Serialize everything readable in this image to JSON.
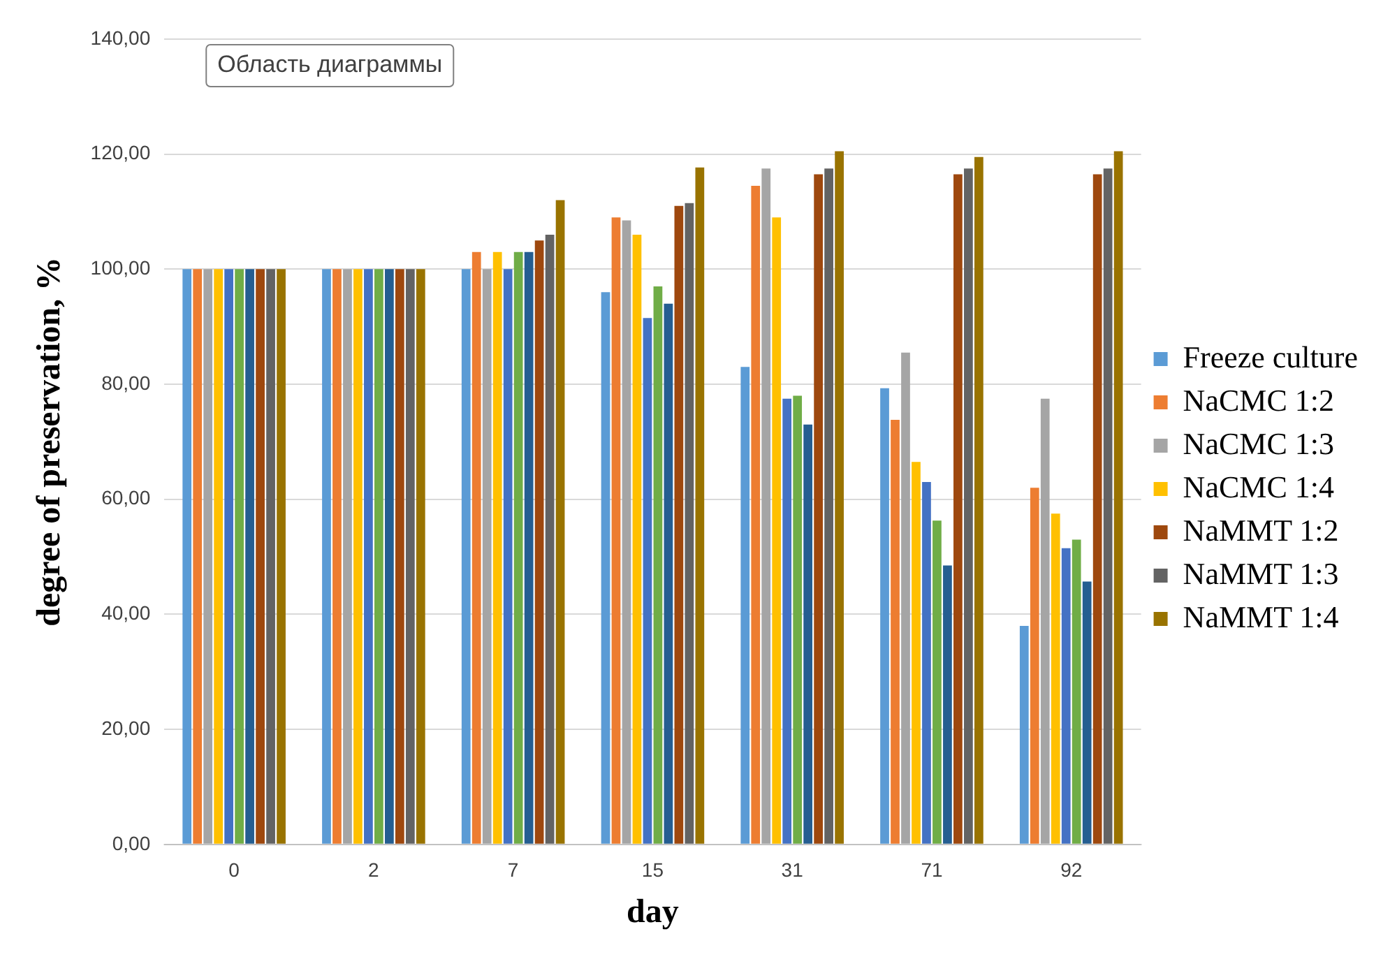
{
  "chart_data": {
    "type": "bar",
    "xlabel": "day",
    "ylabel": "degree of preservation, %",
    "categories": [
      "0",
      "2",
      "7",
      "15",
      "31",
      "71",
      "92"
    ],
    "series": [
      {
        "name": "Freeze culture",
        "color": "#5b9bd5",
        "values": [
          100,
          100,
          100,
          96,
          83,
          79.3,
          38
        ]
      },
      {
        "name": "NaCMC 1:2",
        "color": "#ed7d31",
        "values": [
          100,
          100,
          103,
          109,
          114.5,
          73.8,
          62
        ]
      },
      {
        "name": "NaCMC 1:3",
        "color": "#a5a5a5",
        "values": [
          100,
          100,
          100,
          108.5,
          117.5,
          85.5,
          77.5
        ]
      },
      {
        "name": "NaCMC 1:4",
        "color": "#ffc000",
        "values": [
          100,
          100,
          103,
          106,
          109,
          66.5,
          57.5
        ]
      },
      {
        "color": "#4472c4",
        "values": [
          100,
          100,
          100,
          91.5,
          77.5,
          63,
          51.5
        ]
      },
      {
        "color": "#70ad47",
        "values": [
          100,
          100,
          103,
          97,
          78,
          56.3,
          53
        ]
      },
      {
        "color": "#255e91",
        "values": [
          100,
          100,
          103,
          94,
          73,
          48.5,
          45.7
        ]
      },
      {
        "name": "NaMMT 1:2",
        "color": "#9e480e",
        "values": [
          100,
          100,
          105,
          111,
          116.5,
          116.5,
          116.5
        ]
      },
      {
        "name": "NaMMT 1:3",
        "color": "#636363",
        "values": [
          100,
          100,
          106,
          111.5,
          117.5,
          117.5,
          117.5
        ]
      },
      {
        "name": "NaMMT 1:4",
        "color": "#997300",
        "values": [
          100,
          100,
          112,
          117.7,
          120.5,
          119.5,
          120.5
        ]
      }
    ],
    "ylim": [
      0,
      140
    ],
    "yticks": [
      {
        "value": 0,
        "label": "0,00"
      },
      {
        "value": 20,
        "label": "20,00"
      },
      {
        "value": 40,
        "label": "40,00"
      },
      {
        "value": 60,
        "label": "60,00"
      },
      {
        "value": 80,
        "label": "80,00"
      },
      {
        "value": 100,
        "label": "100,00"
      },
      {
        "value": 120,
        "label": "120,00"
      },
      {
        "value": 140,
        "label": "140,00"
      }
    ],
    "grid": "y",
    "legend": "right",
    "annotations": [
      "Область диаграммы"
    ]
  }
}
